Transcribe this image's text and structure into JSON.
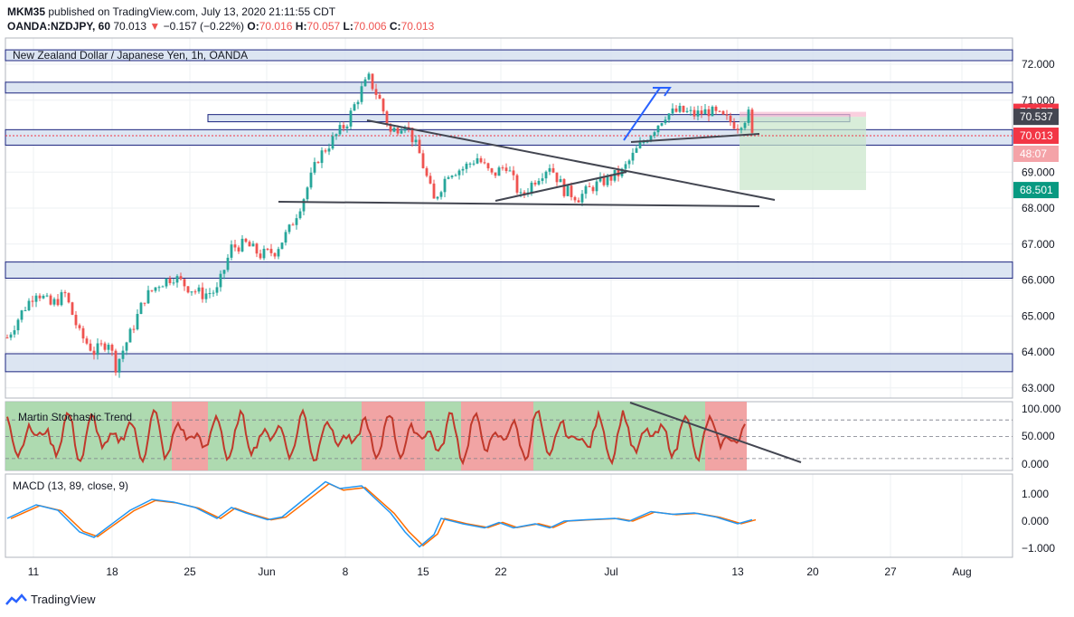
{
  "header": {
    "publisher": "MKM35",
    "published_text": "published on TradingView.com, July 13, 2020 21:11:55 CDT",
    "symbol": "OANDA:NZDJPY, 60",
    "last": "70.013",
    "change": "−0.157 (−0.22%)",
    "o_label": "O:",
    "o": "70.016",
    "h_label": "H:",
    "h": "70.057",
    "l_label": "L:",
    "l": "70.006",
    "c_label": "C:",
    "c": "70.013"
  },
  "chart_title": "New Zealand Dollar / Japanese Yen, 1h, OANDA",
  "footer": {
    "brand": "TradingView"
  },
  "colors": {
    "up": "#26a69a",
    "down": "#ef5350",
    "zone": "#d6e0f0",
    "zone_border": "#1a237e",
    "green_badge": "#089981",
    "red_badge": "#f23645",
    "dark_badge": "#434651",
    "macd": "#2196f3",
    "signal": "#ff6d00",
    "stoch": "#c0392b"
  },
  "chart_data": {
    "type": "candlestick",
    "price_axis": {
      "ticks": [
        "72.000",
        "71.000",
        "70.000",
        "69.000",
        "68.000",
        "67.000",
        "66.000",
        "65.000",
        "64.000",
        "63.000"
      ],
      "range": [
        62.7,
        72.6
      ]
    },
    "x_axis": {
      "ticks": [
        "11",
        "18",
        "25",
        "Jun",
        "8",
        "15",
        "22",
        "Jul",
        "13",
        "20",
        "27",
        "Aug"
      ]
    },
    "price_path": [
      [
        0,
        64.4
      ],
      [
        4,
        65.1
      ],
      [
        8,
        65.7
      ],
      [
        12,
        65.3
      ],
      [
        16,
        65.6
      ],
      [
        20,
        64.5
      ],
      [
        24,
        64.0
      ],
      [
        28,
        64.3
      ],
      [
        30,
        63.6
      ],
      [
        34,
        64.5
      ],
      [
        38,
        65.5
      ],
      [
        42,
        65.9
      ],
      [
        46,
        66.1
      ],
      [
        50,
        65.8
      ],
      [
        54,
        65.6
      ],
      [
        58,
        65.7
      ],
      [
        62,
        66.9
      ],
      [
        66,
        67.0
      ],
      [
        70,
        66.7
      ],
      [
        74,
        66.8
      ],
      [
        78,
        67.4
      ],
      [
        82,
        68.3
      ],
      [
        86,
        69.4
      ],
      [
        90,
        69.9
      ],
      [
        94,
        70.4
      ],
      [
        98,
        71.3
      ],
      [
        100,
        71.6
      ],
      [
        103,
        71.0
      ],
      [
        106,
        70.1
      ],
      [
        110,
        70.4
      ],
      [
        114,
        69.5
      ],
      [
        118,
        68.2
      ],
      [
        122,
        69.0
      ],
      [
        126,
        69.1
      ],
      [
        130,
        69.4
      ],
      [
        134,
        68.9
      ],
      [
        138,
        69.2
      ],
      [
        142,
        68.3
      ],
      [
        146,
        68.8
      ],
      [
        150,
        69.2
      ],
      [
        154,
        68.5
      ],
      [
        158,
        68.3
      ],
      [
        162,
        68.6
      ],
      [
        166,
        68.8
      ],
      [
        170,
        69.0
      ],
      [
        174,
        69.6
      ],
      [
        178,
        70.1
      ],
      [
        182,
        70.6
      ],
      [
        186,
        70.7
      ],
      [
        190,
        70.6
      ],
      [
        194,
        70.7
      ],
      [
        198,
        70.5
      ],
      [
        202,
        70.3
      ],
      [
        205,
        70.6
      ],
      [
        206,
        70.0
      ]
    ],
    "levels": {
      "current": "70.013",
      "countdown": "48:07",
      "target": "70.677",
      "entry": "70.537",
      "stop": "68.501"
    },
    "stochastic": {
      "title": "Martin Stochastic Trend",
      "ticks": [
        "100.000",
        "50.000",
        "0.000"
      ]
    },
    "macd": {
      "title": "MACD (13, 89, close, 9)",
      "ticks": [
        "1.000",
        "0.000",
        "−1.000"
      ],
      "path": [
        [
          0,
          0.1
        ],
        [
          8,
          0.6
        ],
        [
          14,
          0.4
        ],
        [
          20,
          -0.4
        ],
        [
          24,
          -0.6
        ],
        [
          28,
          -0.2
        ],
        [
          34,
          0.4
        ],
        [
          40,
          0.8
        ],
        [
          46,
          0.7
        ],
        [
          52,
          0.5
        ],
        [
          58,
          0.1
        ],
        [
          62,
          0.5
        ],
        [
          66,
          0.3
        ],
        [
          72,
          0.05
        ],
        [
          76,
          0.15
        ],
        [
          82,
          0.8
        ],
        [
          88,
          1.45
        ],
        [
          92,
          1.2
        ],
        [
          98,
          1.3
        ],
        [
          102,
          0.8
        ],
        [
          106,
          0.3
        ],
        [
          110,
          -0.4
        ],
        [
          114,
          -0.95
        ],
        [
          118,
          -0.5
        ],
        [
          120,
          0.1
        ],
        [
          126,
          -0.1
        ],
        [
          132,
          -0.25
        ],
        [
          136,
          -0.05
        ],
        [
          140,
          -0.25
        ],
        [
          146,
          -0.1
        ],
        [
          150,
          -0.25
        ],
        [
          154,
          0.0
        ],
        [
          160,
          0.05
        ],
        [
          168,
          0.1
        ],
        [
          172,
          0.0
        ],
        [
          178,
          0.35
        ],
        [
          184,
          0.25
        ],
        [
          190,
          0.3
        ],
        [
          196,
          0.15
        ],
        [
          202,
          -0.1
        ],
        [
          206,
          0.05
        ]
      ]
    }
  }
}
